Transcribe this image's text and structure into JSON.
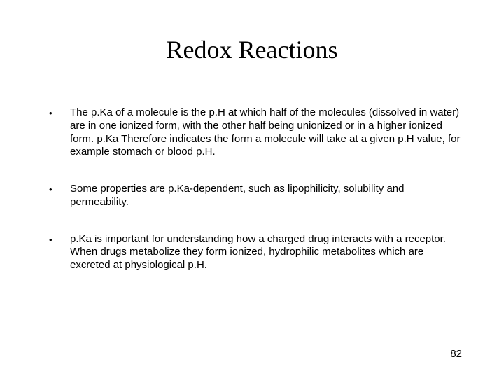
{
  "title": "Redox Reactions",
  "bullets": [
    "The p.Ka of a molecule is the p.H at which half of the molecules (dissolved in water) are in one ionized form, with the other half being unionized or in a higher ionized form. p.Ka Therefore indicates the form a molecule will take at a given p.H value, for example stomach or blood p.H.",
    "Some properties are p.Ka-dependent, such as lipophilicity, solubility and permeability.",
    "p.Ka is important for understanding how a charged drug interacts with a receptor. When drugs metabolize they form ionized, hydrophilic metabolites which are excreted at physiological p.H."
  ],
  "page_number": "82",
  "colors": {
    "background": "#ffffff",
    "text": "#000000"
  },
  "typography": {
    "title_font": "Times New Roman",
    "title_fontsize": 36,
    "body_font": "Arial",
    "body_fontsize": 15,
    "pagenum_fontsize": 15
  }
}
